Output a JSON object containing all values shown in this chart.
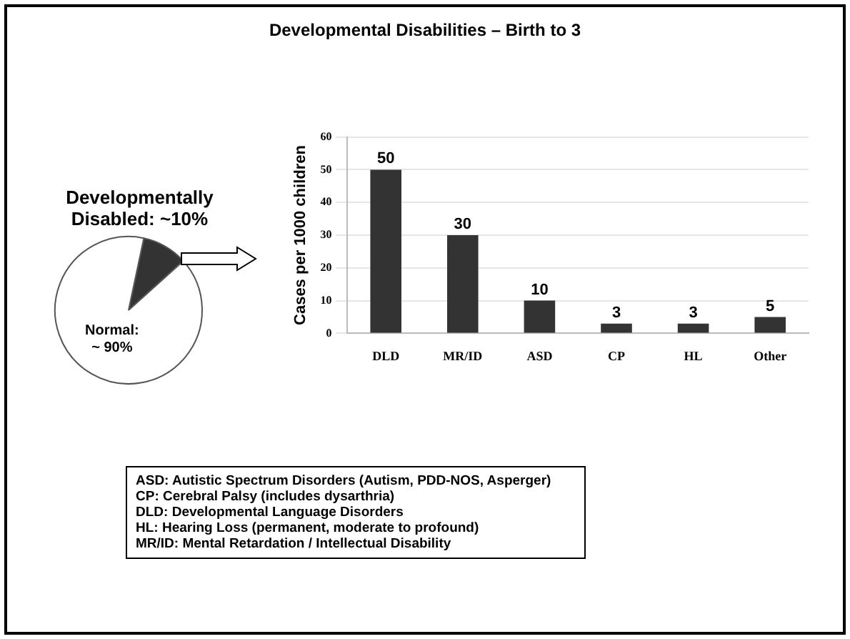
{
  "chart_data": [
    {
      "type": "pie",
      "categories": [
        "Developmentally Disabled: ~10%",
        "Normal: ~ 90%"
      ],
      "values": [
        10,
        90
      ],
      "colors": [
        "#333333",
        "#ffffff"
      ],
      "legend": false
    },
    {
      "type": "bar",
      "title": "Developmental Disabilities – Birth to 3",
      "ylabel": "Cases per 1000 children",
      "categories": [
        "DLD",
        "MR/ID",
        "ASD",
        "CP",
        "HL",
        "Other"
      ],
      "values": [
        50,
        30,
        10,
        3,
        3,
        5
      ],
      "color": "#333333",
      "ylim": [
        0,
        60
      ],
      "yticks": [
        0,
        10,
        20,
        30,
        40,
        50,
        60
      ],
      "grid": "y",
      "data_labels": true,
      "legend": false,
      "annotations": [
        "ASD: Autistic Spectrum Disorders (Autism, PDD-NOS, Asperger)",
        "CP: Cerebral Palsy (includes dysarthria)",
        "DLD: Developmental Language Disorders",
        "HL: Hearing Loss (permanent, moderate to profound)",
        "MR/ID: Mental Retardation / Intellectual Disability"
      ]
    }
  ]
}
